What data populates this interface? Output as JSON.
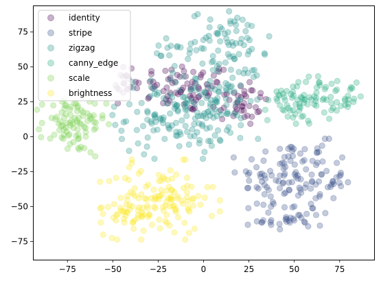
{
  "chart_data": {
    "type": "scatter",
    "title": "",
    "xlabel": "",
    "ylabel": "",
    "xlim": [
      -94,
      94
    ],
    "ylim": [
      -88,
      94
    ],
    "xticks": [
      -75,
      -50,
      -25,
      0,
      25,
      50,
      75
    ],
    "yticks": [
      -75,
      -50,
      -25,
      0,
      25,
      50,
      75
    ],
    "xtick_labels": [
      "−75",
      "−50",
      "−25",
      "0",
      "25",
      "50",
      "75"
    ],
    "ytick_labels": [
      "−75",
      "−50",
      "−25",
      "0",
      "25",
      "50",
      "75"
    ],
    "grid": false,
    "legend_position": "upper-left",
    "marker_alpha": 0.3,
    "series": [
      {
        "name": "identity",
        "color": "#440154",
        "clusters": [
          {
            "cx": -10,
            "cy": 35,
            "sx": 14,
            "sy": 9,
            "n": 70
          },
          {
            "cx": 20,
            "cy": 25,
            "sx": 8,
            "sy": 9,
            "n": 40
          },
          {
            "cx": -44,
            "cy": 38,
            "sx": 3,
            "sy": 8,
            "n": 18
          }
        ]
      },
      {
        "name": "stripe",
        "color": "#3b528b",
        "clusters": [
          {
            "cx": 43,
            "cy": -30,
            "sx": 12,
            "sy": 15,
            "n": 80
          },
          {
            "cx": 62,
            "cy": -30,
            "sx": 8,
            "sy": 13,
            "n": 50
          },
          {
            "cx": 48,
            "cy": -60,
            "sx": 9,
            "sy": 4,
            "n": 25
          }
        ]
      },
      {
        "name": "zigzag",
        "color": "#21918c",
        "clusters": [
          {
            "cx": -15,
            "cy": 15,
            "sx": 16,
            "sy": 14,
            "n": 130
          },
          {
            "cx": 12,
            "cy": 30,
            "sx": 10,
            "sy": 15,
            "n": 70
          },
          {
            "cx": 15,
            "cy": 70,
            "sx": 11,
            "sy": 10,
            "n": 55
          },
          {
            "cx": -18,
            "cy": 60,
            "sx": 5,
            "sy": 5,
            "n": 15
          }
        ]
      },
      {
        "name": "canny_edge",
        "color": "#27ad81",
        "clusters": [
          {
            "cx": 56,
            "cy": 27,
            "sx": 10,
            "sy": 8,
            "n": 80
          },
          {
            "cx": 80,
            "cy": 30,
            "sx": 3,
            "sy": 6,
            "n": 15
          }
        ]
      },
      {
        "name": "scale",
        "color": "#7ad151",
        "clusters": [
          {
            "cx": -72,
            "cy": 8,
            "sx": 9,
            "sy": 10,
            "n": 90
          }
        ]
      },
      {
        "name": "brightness",
        "color": "#fde725",
        "clusters": [
          {
            "cx": -24,
            "cy": -45,
            "sx": 15,
            "sy": 13,
            "n": 120
          },
          {
            "cx": -42,
            "cy": -55,
            "sx": 7,
            "sy": 6,
            "n": 30
          }
        ]
      }
    ]
  }
}
